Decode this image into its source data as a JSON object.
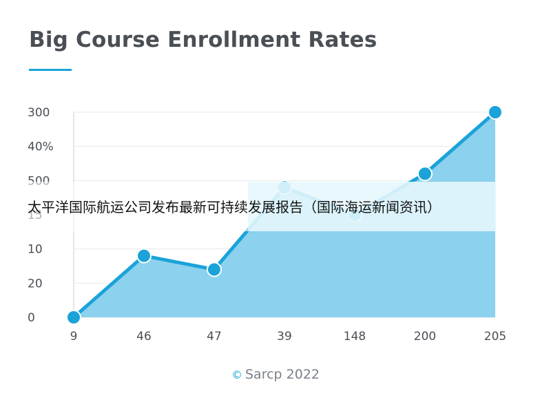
{
  "title": "Big Course Enrollment Rates",
  "footer": {
    "text": "Sarcp 2022",
    "icon": "copyright-icon"
  },
  "overlay_text": "太平洋国际航运公司发布最新可持续发展报告（国际海运新闻资讯）",
  "colors": {
    "accent": "#1aa3d9",
    "fill": "#86cfec",
    "text": "#4a4f55"
  },
  "chart_data": {
    "type": "area",
    "title": "Big Course Enrollment Rates",
    "x": [
      "9",
      "46",
      "47",
      "39",
      "148",
      "200",
      "205"
    ],
    "y_tick_labels": [
      "0",
      "20",
      "10",
      "15",
      "500",
      "40%",
      "300"
    ],
    "values": [
      0,
      9,
      7,
      19,
      15,
      21,
      30
    ],
    "grid": true,
    "legend": "none"
  }
}
